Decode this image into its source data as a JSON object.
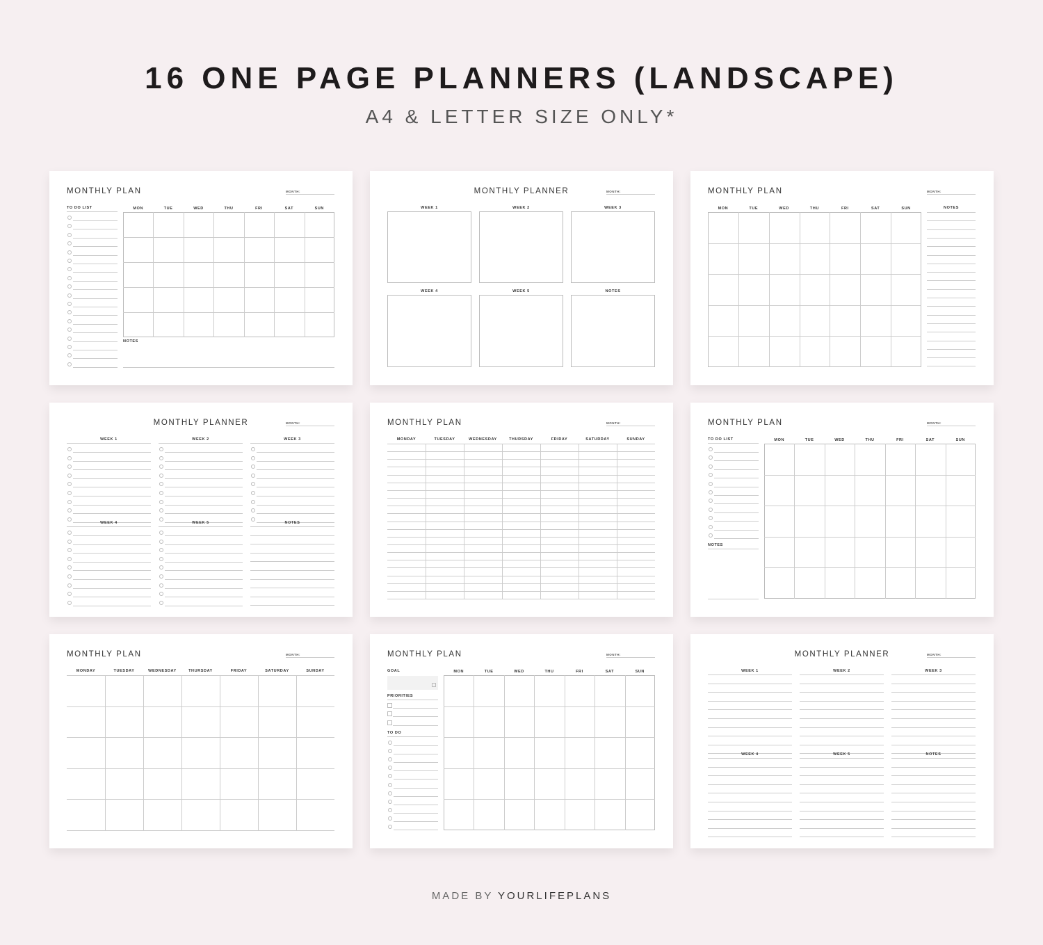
{
  "heading": {
    "title": "16 ONE PAGE PLANNERS (LANDSCAPE)",
    "subtitle": "A4 & LETTER SIZE ONLY*"
  },
  "footer": {
    "prefix": "MADE BY",
    "brand": "YOURLIFEPLANS"
  },
  "labels": {
    "monthly_plan": "MONTHLY PLAN",
    "monthly_planner": "MONTHLY PLANNER",
    "month": "MONTH:",
    "to_do_list": "TO DO LIST",
    "to_do": "TO DO",
    "notes": "NOTES",
    "goal": "GOAL",
    "priorities": "PRIORITIES",
    "weeks": [
      "WEEK 1",
      "WEEK 2",
      "WEEK 3",
      "WEEK 4",
      "WEEK 5",
      "NOTES"
    ],
    "days_short": [
      "MON",
      "TUE",
      "WED",
      "THU",
      "FRI",
      "SAT",
      "SUN"
    ],
    "days_long": [
      "MONDAY",
      "TUESDAY",
      "WEDNESDAY",
      "THURSDAY",
      "FRIDAY",
      "SATURDAY",
      "SUNDAY"
    ]
  },
  "cards": [
    {
      "type": "todo-calendar",
      "title": "monthly_plan"
    },
    {
      "type": "week-boxes",
      "title": "monthly_planner"
    },
    {
      "type": "calendar-notes",
      "title": "monthly_plan"
    },
    {
      "type": "week-checklists",
      "title": "monthly_planner"
    },
    {
      "type": "lined-week",
      "title": "monthly_plan"
    },
    {
      "type": "todo-notes-calendar",
      "title": "monthly_plan"
    },
    {
      "type": "full-calendar",
      "title": "monthly_plan"
    },
    {
      "type": "goal-calendar",
      "title": "monthly_plan"
    },
    {
      "type": "week-lines",
      "title": "monthly_planner"
    }
  ],
  "colors": {
    "background": "#f6eff1",
    "card": "#ffffff",
    "rule": "#cccccc"
  }
}
